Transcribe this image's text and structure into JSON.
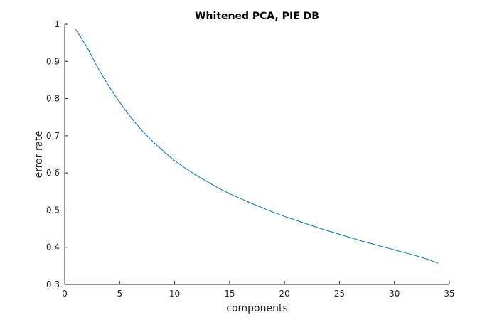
{
  "chart_data": {
    "type": "line",
    "title": "Whitened PCA, PIE DB",
    "xlabel": "components",
    "ylabel": "error rate",
    "xlim": [
      0,
      35
    ],
    "ylim": [
      0.3,
      1
    ],
    "xticks": [
      0,
      5,
      10,
      15,
      20,
      25,
      30,
      35
    ],
    "yticks": [
      0.3,
      0.4,
      0.5,
      0.6,
      0.7,
      0.8,
      0.9,
      1
    ],
    "xtick_labels": [
      "0",
      "5",
      "10",
      "15",
      "20",
      "25",
      "30",
      "35"
    ],
    "ytick_labels": [
      "0.3",
      "0.4",
      "0.5",
      "0.6",
      "0.7",
      "0.8",
      "0.9",
      "1"
    ],
    "grid": false,
    "series": [
      {
        "name": "error rate",
        "color": "#0072bd",
        "x": [
          1,
          2,
          3,
          4,
          5,
          6,
          7,
          8,
          9,
          10,
          11,
          12,
          13,
          14,
          15,
          16,
          17,
          18,
          19,
          20,
          21,
          22,
          23,
          24,
          25,
          26,
          27,
          28,
          29,
          30,
          31,
          32,
          33,
          34
        ],
        "y": [
          0.986,
          0.94,
          0.883,
          0.834,
          0.79,
          0.75,
          0.715,
          0.685,
          0.658,
          0.633,
          0.612,
          0.593,
          0.576,
          0.559,
          0.544,
          0.531,
          0.518,
          0.506,
          0.494,
          0.483,
          0.473,
          0.463,
          0.453,
          0.444,
          0.435,
          0.426,
          0.417,
          0.409,
          0.401,
          0.393,
          0.385,
          0.377,
          0.368,
          0.357
        ]
      }
    ]
  }
}
